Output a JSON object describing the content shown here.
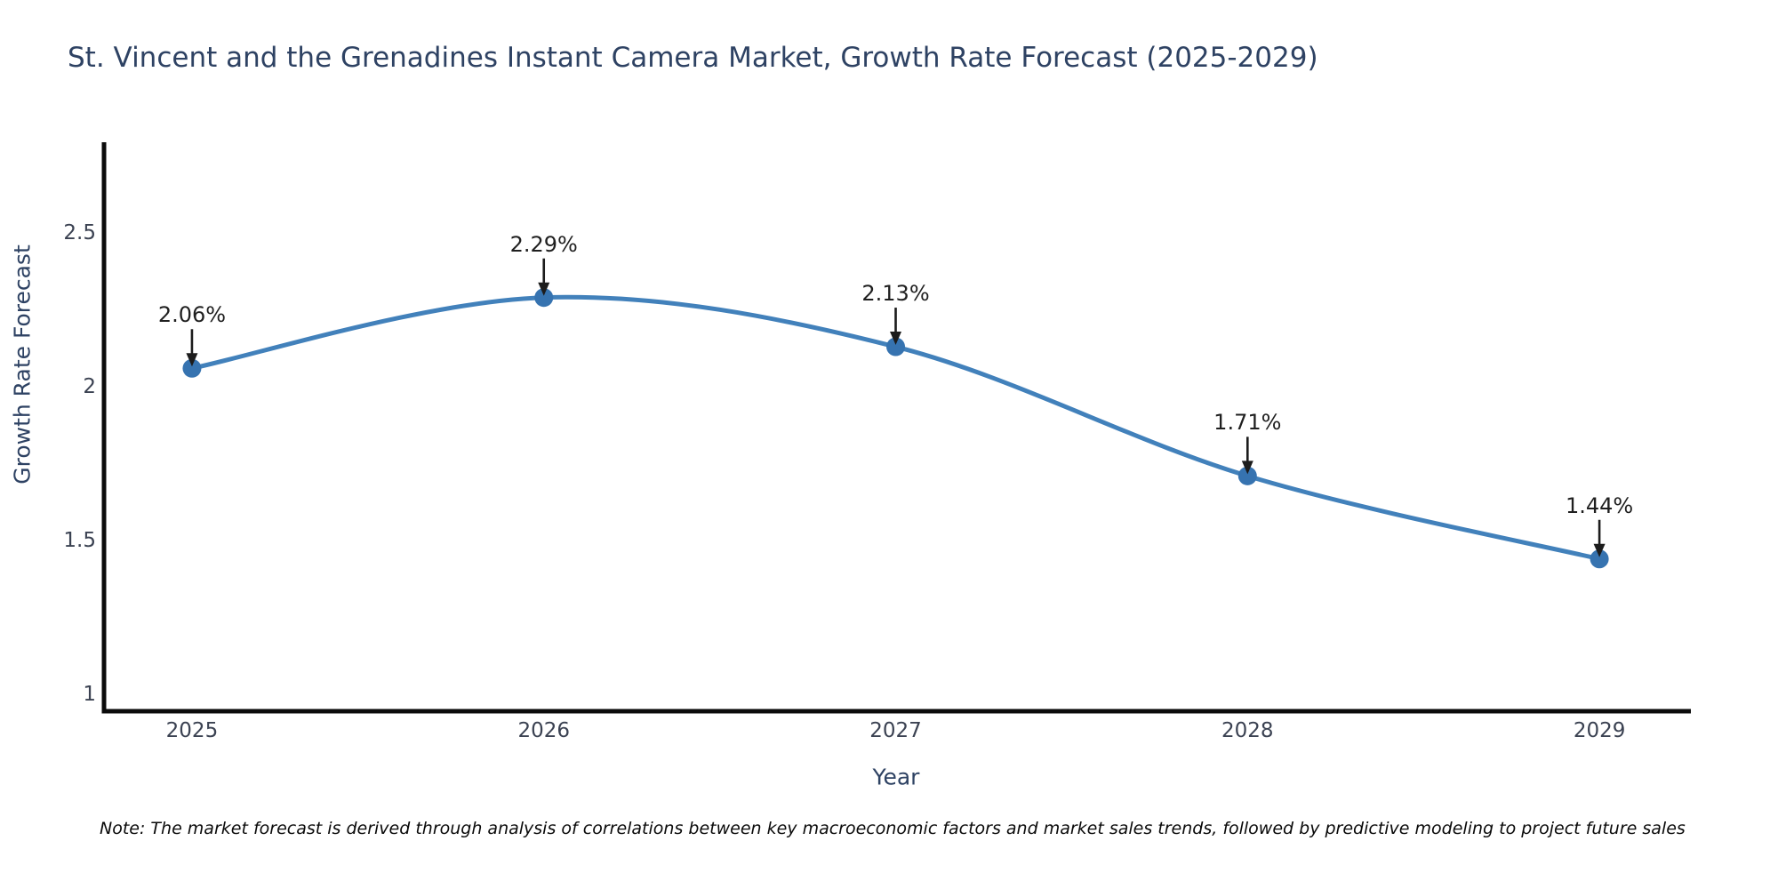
{
  "chart_data": {
    "type": "line",
    "title": "St. Vincent and the Grenadines Instant Camera Market, Growth Rate Forecast (2025-2029)",
    "xlabel": "Year",
    "ylabel": "Growth Rate Forecast",
    "x": [
      2025,
      2026,
      2027,
      2028,
      2029
    ],
    "y": [
      2.06,
      2.29,
      2.13,
      1.71,
      1.44
    ],
    "point_labels": [
      "2.06%",
      "2.29%",
      "2.13%",
      "1.71%",
      "1.44%"
    ],
    "x_tick_labels": [
      "2025",
      "2026",
      "2027",
      "2028",
      "2029"
    ],
    "y_ticks": [
      1,
      1.5,
      2,
      2.5
    ],
    "y_tick_labels": [
      "1",
      "1.5",
      "2",
      "2.5"
    ],
    "x_range": [
      2024.75,
      2029.26
    ],
    "y_range": [
      0.945,
      2.795
    ],
    "line_shape": "spline",
    "grid": false,
    "legend": "none",
    "colors": {
      "line": "#4281bb",
      "marker": "#3673b0",
      "annotation_arrow": "#1c1c1c",
      "annotation_text": "#1f1f1f",
      "axis_line": "#0b0b0b",
      "tick_text": "#3b4252",
      "title_text": "#2e4263"
    }
  },
  "note": {
    "text": "Note: The market forecast is derived through analysis of correlations between key macroeconomic factors and market sales trends, followed by predictive modeling to project future sales"
  }
}
